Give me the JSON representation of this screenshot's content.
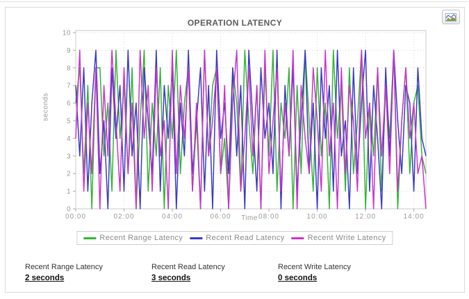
{
  "toolbar": {
    "chart_button_icon": "line-chart-icon"
  },
  "chart_data": {
    "type": "line",
    "title": "OPERATION LATENCY",
    "xlabel": "Time",
    "ylabel": "seconds",
    "ylim": [
      0,
      10
    ],
    "y_ticks": [
      0,
      1,
      2,
      3,
      4,
      5,
      6,
      7,
      8,
      9,
      10
    ],
    "x_ticks": [
      "00:00",
      "02:00",
      "04:00",
      "06:00",
      "08:00",
      "10:00",
      "12:00",
      "14:00"
    ],
    "x_tick_interval_minutes": 120,
    "x_range_minutes": 870,
    "sample_interval_minutes": 10,
    "grid": true,
    "legend_position": "bottom",
    "series": [
      {
        "name": "Recent Range Latency",
        "color": "#33b533",
        "values": [
          6,
          8,
          2,
          7,
          0,
          8,
          8,
          3,
          6,
          1,
          9,
          4,
          7,
          2,
          8,
          0,
          5,
          9,
          1,
          6,
          3,
          8,
          0,
          7,
          4,
          9,
          2,
          6,
          8,
          1,
          5,
          0,
          9,
          3,
          7,
          8,
          2,
          4,
          0,
          8,
          6,
          1,
          9,
          5,
          2,
          7,
          0,
          8,
          3,
          9,
          1,
          6,
          4,
          8,
          0,
          7,
          2,
          9,
          5,
          1,
          8,
          3,
          6,
          0,
          9,
          4,
          7,
          1,
          8,
          2,
          5,
          9,
          0,
          6,
          3,
          8,
          1,
          7,
          4,
          9,
          0,
          5,
          8,
          2,
          6,
          7,
          3,
          2
        ]
      },
      {
        "name": "Recent Read Latency",
        "color": "#3a3ac8",
        "values": [
          7,
          3,
          8,
          1,
          6,
          9,
          2,
          5,
          0,
          8,
          4,
          7,
          1,
          9,
          3,
          6,
          0,
          8,
          5,
          2,
          9,
          1,
          7,
          4,
          8,
          0,
          6,
          3,
          9,
          2,
          5,
          8,
          1,
          7,
          0,
          9,
          4,
          6,
          2,
          8,
          3,
          7,
          0,
          9,
          5,
          1,
          8,
          4,
          6,
          2,
          9,
          0,
          7,
          3,
          8,
          1,
          5,
          9,
          2,
          6,
          0,
          8,
          4,
          7,
          1,
          9,
          3,
          5,
          0,
          8,
          2,
          6,
          9,
          1,
          7,
          4,
          0,
          8,
          3,
          9,
          5,
          2,
          7,
          6,
          1,
          8,
          4,
          3
        ]
      },
      {
        "name": "Recent Write Latency",
        "color": "#cc33cc",
        "values": [
          4,
          9,
          1,
          6,
          2,
          8,
          0,
          7,
          3,
          9,
          5,
          1,
          8,
          2,
          6,
          0,
          9,
          4,
          7,
          1,
          8,
          3,
          5,
          0,
          9,
          2,
          7,
          4,
          8,
          1,
          6,
          0,
          9,
          3,
          5,
          8,
          2,
          7,
          0,
          6,
          9,
          1,
          4,
          8,
          3,
          7,
          0,
          9,
          2,
          5,
          8,
          1,
          6,
          3,
          9,
          0,
          7,
          4,
          2,
          8,
          5,
          1,
          9,
          3,
          6,
          0,
          8,
          2,
          7,
          5,
          1,
          9,
          4,
          6,
          0,
          8,
          3,
          7,
          2,
          9,
          1,
          5,
          8,
          4,
          6,
          2,
          3,
          0
        ]
      }
    ]
  },
  "stats": [
    {
      "label": "Recent Range Latency",
      "value": "2 seconds"
    },
    {
      "label": "Recent Read Latency",
      "value": "3 seconds"
    },
    {
      "label": "Recent Write Latency",
      "value": "0 seconds"
    }
  ],
  "colors": {
    "grid": "#d6d6d6",
    "plot_border": "#c9c9c9",
    "axis_text": "#999999"
  }
}
